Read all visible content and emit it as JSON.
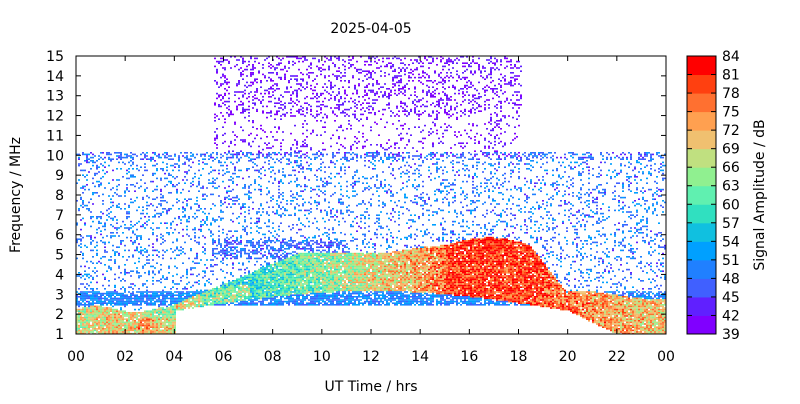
{
  "chart_data": {
    "type": "heatmap",
    "title": "2025-04-05",
    "xlabel": "UT Time / hrs",
    "ylabel": "Frequency / MHz",
    "x_ticks": [
      "00",
      "02",
      "04",
      "06",
      "08",
      "10",
      "12",
      "14",
      "16",
      "18",
      "20",
      "22",
      "00"
    ],
    "x_range": [
      0,
      24
    ],
    "y_ticks": [
      "1",
      "2",
      "3",
      "4",
      "5",
      "6",
      "7",
      "8",
      "9",
      "10",
      "11",
      "12",
      "13",
      "14",
      "15"
    ],
    "y_range": [
      1,
      15
    ],
    "colorbar": {
      "label": "Signal Amplitude / dB",
      "ticks": [
        "39",
        "42",
        "45",
        "48",
        "51",
        "54",
        "57",
        "60",
        "63",
        "66",
        "69",
        "72",
        "75",
        "78",
        "81",
        "84"
      ],
      "range": [
        39,
        84
      ],
      "colors": [
        "#8000ff",
        "#6020ff",
        "#4060ff",
        "#2080ff",
        "#00a0ff",
        "#10c0e0",
        "#30e0c0",
        "#60f0b0",
        "#90f090",
        "#c0e080",
        "#f0c070",
        "#ffa050",
        "#ff7030",
        "#ff4010",
        "#ff0000"
      ]
    },
    "features": {
      "low_band_layer": {
        "freq_range_mhz": [
          1,
          2.3
        ],
        "amplitude_db": "66-75",
        "hours": "00-04"
      },
      "daytime_arch": {
        "freq_range_mhz": [
          2,
          5.5
        ],
        "peak_amplitude_db": 84,
        "peak_hours": "16-19"
      },
      "interference_band": {
        "freq_range_mhz": [
          2.5,
          3.1
        ],
        "amplitude_db": "48-54"
      },
      "high_freq_noise": {
        "freq_range_mhz": [
          10,
          15
        ],
        "amplitude_db": "39-45",
        "hours": "05.5-18"
      }
    }
  }
}
